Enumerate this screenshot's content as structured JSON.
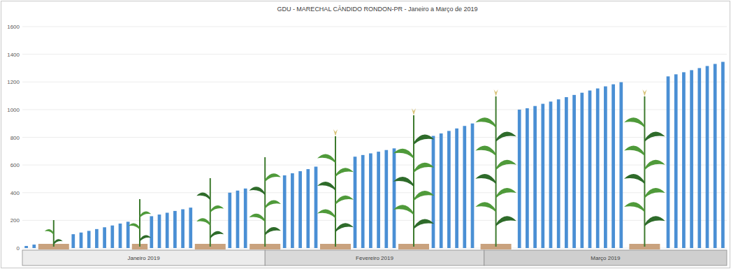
{
  "chart_data": {
    "type": "bar",
    "title": "GDU - MARECHAL CÂNDIDO RONDON-PR  -  Janeiro a Março de 2019",
    "categories": [
      null,
      null,
      null,
      null,
      null,
      null,
      null,
      null,
      null,
      null,
      null,
      null,
      null,
      null,
      null,
      null,
      null,
      null,
      null,
      null,
      null,
      null,
      null,
      null,
      null,
      null,
      null,
      null,
      null,
      null,
      null,
      null,
      null,
      null,
      null,
      null,
      null,
      null,
      null,
      null,
      null,
      null,
      null,
      null,
      null,
      null,
      null,
      null,
      null,
      null,
      null,
      null,
      null,
      null,
      null,
      null,
      null,
      null,
      null,
      null,
      null,
      null,
      null,
      null,
      null,
      null,
      null,
      null,
      null,
      null,
      null,
      null,
      null,
      null,
      null,
      null,
      null,
      null,
      null,
      null,
      null,
      null,
      null,
      null,
      null,
      null,
      null,
      null,
      null,
      null
    ],
    "values": [
      15,
      25,
      null,
      null,
      null,
      null,
      100,
      112,
      124,
      137,
      150,
      163,
      177,
      190,
      null,
      null,
      230,
      242,
      255,
      268,
      280,
      292,
      null,
      null,
      null,
      null,
      400,
      415,
      430,
      null,
      null,
      null,
      null,
      525,
      540,
      555,
      570,
      588,
      null,
      null,
      null,
      null,
      660,
      672,
      684,
      696,
      708,
      720,
      null,
      null,
      null,
      null,
      810,
      828,
      846,
      864,
      882,
      900,
      null,
      null,
      null,
      null,
      null,
      1000,
      1010,
      1026,
      1042,
      1058,
      1074,
      1090,
      1106,
      1122,
      1138,
      1153,
      1168,
      1183,
      1198,
      null,
      null,
      null,
      null,
      null,
      1240,
      1255,
      1270,
      1285,
      1300,
      1315,
      1330,
      1345
    ],
    "month_groups": [
      {
        "label": "Janeiro 2019",
        "days": 31
      },
      {
        "label": "Fevereiro 2019",
        "days": 28
      },
      {
        "label": "Março 2019",
        "days": 31
      }
    ],
    "color": "#4a8fd4",
    "ylim": [
      0,
      1600
    ],
    "yticks": [
      0,
      200,
      400,
      600,
      800,
      1000,
      1200,
      1400,
      1600
    ],
    "grid": true
  }
}
